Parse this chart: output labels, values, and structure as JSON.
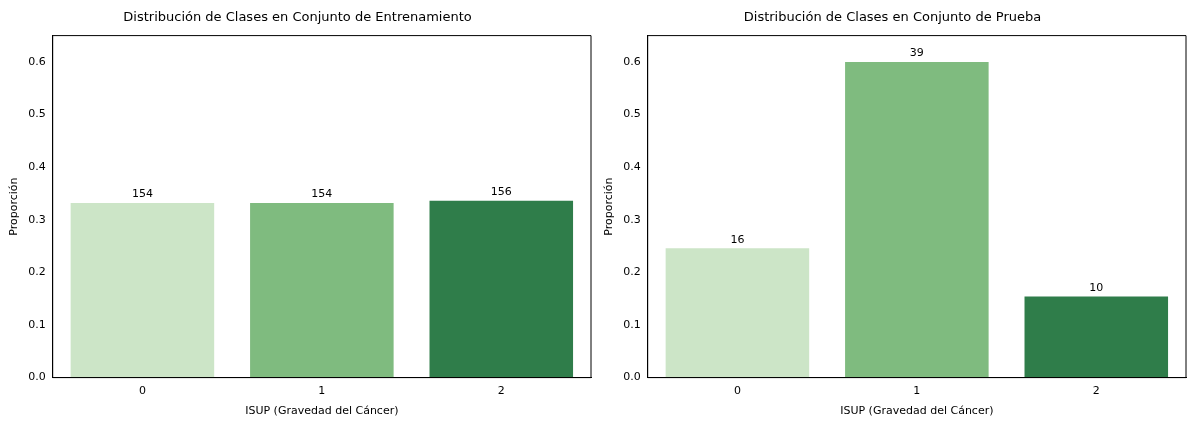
{
  "chart_data": [
    {
      "type": "bar",
      "title": "Distribución de Clases en Conjunto de Entrenamiento",
      "xlabel": "ISUP (Gravedad del Cáncer)",
      "ylabel": "Proporción",
      "categories": [
        "0",
        "1",
        "2"
      ],
      "values": [
        0.332,
        0.332,
        0.336
      ],
      "colors": [
        "#cce5c7",
        "#7fbb7f",
        "#2f7d4a"
      ],
      "annotations": [
        {
          "text": "154",
          "x": "0",
          "y": 0.332
        },
        {
          "text": "154",
          "x": "1",
          "y": 0.332
        },
        {
          "text": "156",
          "x": "2",
          "y": 0.336
        }
      ],
      "ylim": [
        0,
        0.65
      ],
      "yticks": [
        {
          "value": 0,
          "label": "0.0"
        },
        {
          "value": 0.1,
          "label": "0.1"
        },
        {
          "value": 0.2,
          "label": "0.2"
        },
        {
          "value": 0.3,
          "label": "0.3"
        },
        {
          "value": 0.4,
          "label": "0.4"
        },
        {
          "value": 0.5,
          "label": "0.5"
        },
        {
          "value": 0.6,
          "label": "0.6"
        }
      ],
      "grid": false,
      "legend": false
    },
    {
      "type": "bar",
      "title": "Distribución de Clases en Conjunto de Prueba",
      "xlabel": "ISUP (Gravedad del Cáncer)",
      "ylabel": "Proporción",
      "categories": [
        "0",
        "1",
        "2"
      ],
      "values": [
        0.246,
        0.6,
        0.154
      ],
      "colors": [
        "#cce5c7",
        "#7fbb7f",
        "#2f7d4a"
      ],
      "annotations": [
        {
          "text": "16",
          "x": "0",
          "y": 0.246
        },
        {
          "text": "39",
          "x": "1",
          "y": 0.6
        },
        {
          "text": "10",
          "x": "2",
          "y": 0.154
        }
      ],
      "ylim": [
        0,
        0.65
      ],
      "yticks": [
        {
          "value": 0,
          "label": "0.0"
        },
        {
          "value": 0.1,
          "label": "0.1"
        },
        {
          "value": 0.2,
          "label": "0.2"
        },
        {
          "value": 0.3,
          "label": "0.3"
        },
        {
          "value": 0.4,
          "label": "0.4"
        },
        {
          "value": 0.5,
          "label": "0.5"
        },
        {
          "value": 0.6,
          "label": "0.6"
        }
      ],
      "grid": false,
      "legend": false
    }
  ]
}
